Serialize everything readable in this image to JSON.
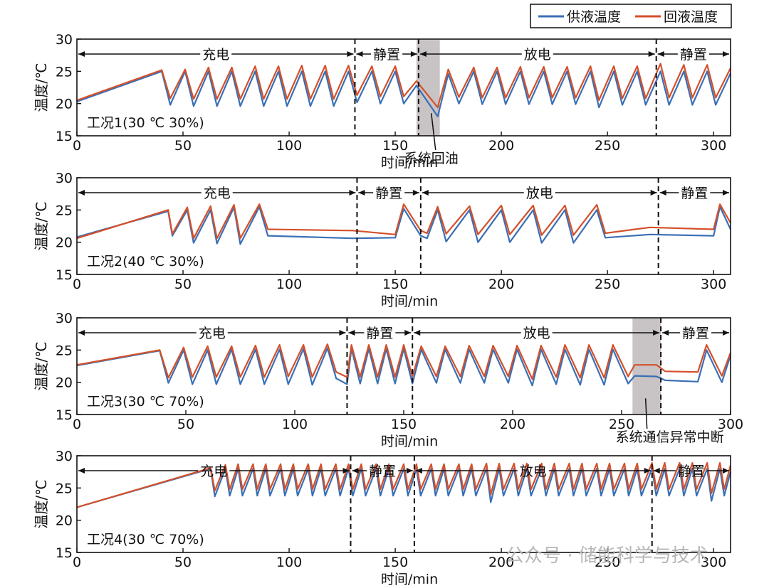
{
  "legend": {
    "supply": {
      "label": "供液温度",
      "color": "#3a6fb5"
    },
    "return": {
      "label": "回液温度",
      "color": "#d4502a"
    }
  },
  "watermark": "公众号 · 储能科学与技术",
  "chart_data": [
    {
      "type": "line",
      "condition_label": "工况1(30 ℃ 30%)",
      "xlabel": "时间/min",
      "ylabel": "温度/℃",
      "xlim": [
        0,
        308
      ],
      "ylim": [
        15,
        30
      ],
      "xticks": [
        0,
        50,
        100,
        150,
        200,
        250,
        300
      ],
      "yticks": [
        15,
        20,
        25,
        30
      ],
      "phases": [
        {
          "label": "充电",
          "start": 0,
          "end": 131
        },
        {
          "label": "静置",
          "start": 131,
          "end": 161
        },
        {
          "label": "放电",
          "start": 161,
          "end": 273
        },
        {
          "label": "静置",
          "start": 273,
          "end": 308
        }
      ],
      "shade": [
        160,
        171
      ],
      "annotation": {
        "text": "系统回油",
        "x": 167,
        "y": 18.5
      },
      "charge_ramp": {
        "start": 0,
        "end": 40,
        "supply": [
          20.3,
          25.0
        ],
        "return": [
          20.5,
          25.2
        ]
      },
      "cycle": {
        "start": 40,
        "period": 11.1,
        "peak": 25.0,
        "trough": 19.6,
        "return_offset": 1.0
      },
      "flat": [
        [
          160,
          171,
          18.1,
          19.4
        ]
      ],
      "series": [
        {
          "name": "供液温度",
          "x": [
            0,
            40,
            44,
            51,
            55,
            62,
            66,
            73,
            77,
            84,
            88,
            95,
            99,
            106,
            110,
            117,
            121,
            128,
            132,
            139,
            143,
            150,
            154,
            160,
            170,
            175,
            180,
            187,
            191,
            198,
            202,
            209,
            213,
            220,
            224,
            231,
            235,
            242,
            246,
            253,
            257,
            264,
            268,
            275,
            279,
            286,
            290,
            297,
            301,
            308
          ],
          "y": [
            20.3,
            25.0,
            19.8,
            25.0,
            19.6,
            25.0,
            19.6,
            25.0,
            19.6,
            25.0,
            19.6,
            25.0,
            19.6,
            25.0,
            19.6,
            25.0,
            19.6,
            25.0,
            20.2,
            25.0,
            20.0,
            25.0,
            20.0,
            22.8,
            18.0,
            24.6,
            20.0,
            25.0,
            19.9,
            25.0,
            19.9,
            25.0,
            19.9,
            25.0,
            19.9,
            25.0,
            19.9,
            25.0,
            19.4,
            25.0,
            19.8,
            25.0,
            19.8,
            25.0,
            19.8,
            25.0,
            19.8,
            25.0,
            19.8,
            24.7
          ]
        },
        {
          "name": "回液温度",
          "x": [
            0,
            40,
            44,
            51,
            55,
            62,
            66,
            73,
            77,
            84,
            88,
            95,
            99,
            106,
            110,
            117,
            121,
            128,
            132,
            139,
            143,
            150,
            154,
            160,
            170,
            175,
            180,
            187,
            191,
            198,
            202,
            209,
            213,
            220,
            224,
            231,
            235,
            242,
            246,
            253,
            257,
            264,
            268,
            275,
            279,
            286,
            290,
            297,
            301,
            308
          ],
          "y": [
            20.5,
            25.2,
            20.8,
            25.3,
            20.7,
            25.6,
            20.7,
            25.6,
            20.7,
            25.8,
            20.7,
            25.8,
            20.7,
            25.9,
            20.7,
            25.9,
            20.7,
            25.9,
            21.3,
            25.8,
            21.1,
            25.8,
            21.1,
            23.5,
            19.4,
            25.3,
            21.0,
            25.6,
            20.9,
            25.6,
            20.9,
            25.7,
            20.9,
            25.7,
            20.9,
            25.7,
            20.9,
            25.8,
            20.5,
            25.8,
            20.8,
            25.8,
            20.8,
            26.2,
            20.9,
            26.0,
            20.9,
            26.0,
            20.9,
            25.5
          ]
        }
      ]
    },
    {
      "type": "line",
      "condition_label": "工况2(40 ℃ 30%)",
      "xlabel": "时间/min",
      "ylabel": "温度/℃",
      "xlim": [
        0,
        308
      ],
      "ylim": [
        15,
        30
      ],
      "xticks": [
        0,
        50,
        100,
        150,
        200,
        250,
        300
      ],
      "yticks": [
        15,
        20,
        25,
        30
      ],
      "phases": [
        {
          "label": "充电",
          "start": 0,
          "end": 132
        },
        {
          "label": "静置",
          "start": 132,
          "end": 162
        },
        {
          "label": "放电",
          "start": 162,
          "end": 274
        },
        {
          "label": "静置",
          "start": 274,
          "end": 308
        }
      ],
      "series": [
        {
          "name": "供液温度",
          "x": [
            0,
            43,
            45,
            52,
            55,
            63,
            66,
            74,
            77,
            86,
            90,
            130,
            150,
            154,
            162,
            165,
            170,
            174,
            185,
            189,
            200,
            204,
            215,
            219,
            230,
            234,
            245,
            249,
            270,
            300,
            303,
            308
          ],
          "y": [
            20.8,
            24.8,
            21.0,
            25.0,
            19.9,
            25.0,
            19.8,
            25.4,
            19.7,
            25.5,
            21.0,
            20.6,
            20.7,
            25.2,
            21.0,
            20.6,
            25.0,
            20.1,
            25.0,
            20.0,
            25.0,
            20.0,
            25.0,
            19.9,
            25.0,
            19.9,
            25.0,
            20.7,
            21.2,
            21.0,
            25.5,
            22.0
          ]
        },
        {
          "name": "回液温度",
          "x": [
            0,
            43,
            45,
            52,
            55,
            63,
            66,
            74,
            77,
            86,
            90,
            130,
            150,
            154,
            162,
            165,
            170,
            174,
            185,
            189,
            200,
            204,
            215,
            219,
            230,
            234,
            245,
            249,
            270,
            300,
            303,
            308
          ],
          "y": [
            20.6,
            25.0,
            21.3,
            25.4,
            20.6,
            25.6,
            20.6,
            25.8,
            20.6,
            25.9,
            22.0,
            21.8,
            21.2,
            25.9,
            21.8,
            21.4,
            25.5,
            21.3,
            25.6,
            21.2,
            25.7,
            21.2,
            25.7,
            21.1,
            25.7,
            21.1,
            25.8,
            21.4,
            22.3,
            22.0,
            25.9,
            23.0
          ]
        }
      ]
    },
    {
      "type": "line",
      "condition_label": "工况3(30 ℃ 70%)",
      "xlabel": "时间/min",
      "ylabel": "温度/℃",
      "xlim": [
        0,
        300
      ],
      "ylim": [
        15,
        30
      ],
      "xticks": [
        0,
        50,
        100,
        150,
        200,
        250,
        300
      ],
      "yticks": [
        15,
        20,
        25,
        30
      ],
      "phases": [
        {
          "label": "充电",
          "start": 0,
          "end": 124
        },
        {
          "label": "静置",
          "start": 124,
          "end": 154
        },
        {
          "label": "放电",
          "start": 154,
          "end": 268
        },
        {
          "label": "静置",
          "start": 268,
          "end": 300
        }
      ],
      "shade": [
        255,
        268
      ],
      "annotation": {
        "text": "系统通信异常中断",
        "x": 261,
        "y": 17.5
      },
      "series": [
        {
          "name": "供液温度",
          "x": [
            0,
            38,
            42,
            49,
            53,
            60,
            64,
            71,
            75,
            82,
            86,
            93,
            97,
            104,
            108,
            115,
            119,
            124,
            126,
            130,
            134,
            138,
            142,
            146,
            150,
            154,
            158,
            165,
            169,
            176,
            180,
            187,
            191,
            198,
            202,
            209,
            213,
            220,
            224,
            231,
            235,
            242,
            246,
            253,
            256,
            266,
            270,
            285,
            289,
            296,
            300
          ],
          "y": [
            22.6,
            24.9,
            19.9,
            25.0,
            19.7,
            25.0,
            19.7,
            25.1,
            19.7,
            25.1,
            19.7,
            25.1,
            19.7,
            25.2,
            19.6,
            25.3,
            20.6,
            19.7,
            25.2,
            19.8,
            25.2,
            19.8,
            25.2,
            19.8,
            25.2,
            19.8,
            25.1,
            19.9,
            25.1,
            19.9,
            25.1,
            19.9,
            25.1,
            19.9,
            25.1,
            19.5,
            25.1,
            19.7,
            25.1,
            19.6,
            25.1,
            19.6,
            25.1,
            19.8,
            21.0,
            20.9,
            20.3,
            20.1,
            25.0,
            20.0,
            24.2
          ]
        },
        {
          "name": "回液温度",
          "x": [
            0,
            38,
            42,
            49,
            53,
            60,
            64,
            71,
            75,
            82,
            86,
            93,
            97,
            104,
            108,
            115,
            119,
            124,
            126,
            130,
            134,
            138,
            142,
            146,
            150,
            154,
            158,
            165,
            169,
            176,
            180,
            187,
            191,
            198,
            202,
            209,
            213,
            220,
            224,
            231,
            235,
            242,
            246,
            253,
            256,
            266,
            270,
            285,
            289,
            296,
            300
          ],
          "y": [
            22.7,
            25.0,
            20.7,
            25.4,
            20.8,
            25.6,
            20.8,
            25.6,
            20.8,
            25.7,
            20.8,
            25.8,
            20.9,
            25.8,
            20.8,
            25.9,
            21.6,
            20.8,
            25.8,
            20.8,
            25.8,
            20.8,
            25.8,
            20.8,
            25.8,
            20.9,
            25.6,
            20.9,
            25.6,
            20.9,
            25.7,
            20.9,
            25.7,
            20.9,
            25.7,
            20.5,
            25.7,
            20.8,
            25.8,
            20.7,
            25.8,
            20.7,
            25.8,
            20.9,
            22.7,
            22.7,
            21.7,
            21.6,
            25.8,
            21.0,
            24.6
          ]
        }
      ]
    },
    {
      "type": "line",
      "condition_label": "工况4(30 ℃ 70%)",
      "xlabel": "时间/min",
      "ylabel": "温度/℃",
      "xlim": [
        0,
        308
      ],
      "ylim": [
        15,
        30
      ],
      "xticks": [
        0,
        50,
        100,
        150,
        200,
        250,
        300
      ],
      "yticks": [
        15,
        20,
        25,
        30
      ],
      "phases": [
        {
          "label": "充电",
          "start": 0,
          "end": 129
        },
        {
          "label": "静置",
          "start": 129,
          "end": 159
        },
        {
          "label": "放电",
          "start": 159,
          "end": 271
        },
        {
          "label": "静置",
          "start": 271,
          "end": 308
        }
      ],
      "series": [
        {
          "name": "供液温度",
          "x": [
            0,
            63,
            65,
            70,
            72,
            76,
            78,
            83,
            85,
            89,
            91,
            96,
            98,
            102,
            104,
            109,
            111,
            115,
            117,
            122,
            124,
            128,
            130,
            134,
            136,
            141,
            143,
            147,
            149,
            154,
            156,
            160,
            162,
            167,
            169,
            173,
            175,
            180,
            182,
            186,
            188,
            193,
            195,
            199,
            201,
            206,
            208,
            212,
            214,
            219,
            221,
            225,
            227,
            232,
            234,
            238,
            240,
            245,
            247,
            251,
            253,
            258,
            260,
            264,
            266,
            271,
            273,
            277,
            279,
            284,
            286,
            290,
            292,
            297,
            299,
            303,
            305,
            308
          ],
          "y": [
            22.0,
            28.0,
            23.7,
            28.0,
            23.8,
            28.0,
            23.8,
            28.0,
            23.8,
            28.0,
            23.8,
            28.0,
            23.8,
            28.0,
            23.8,
            28.0,
            23.8,
            28.0,
            23.8,
            28.0,
            23.8,
            28.0,
            23.8,
            28.0,
            23.8,
            28.0,
            23.8,
            28.0,
            23.8,
            28.0,
            23.8,
            28.0,
            23.8,
            28.0,
            23.8,
            28.0,
            23.8,
            28.0,
            23.8,
            28.0,
            23.8,
            28.0,
            22.8,
            28.0,
            23.8,
            28.0,
            23.8,
            28.0,
            23.8,
            28.0,
            23.8,
            28.0,
            23.8,
            28.0,
            23.8,
            28.0,
            23.8,
            28.0,
            23.8,
            28.0,
            23.8,
            28.0,
            23.8,
            28.0,
            23.8,
            28.0,
            23.8,
            28.0,
            23.8,
            28.0,
            23.8,
            28.0,
            23.8,
            28.0,
            23.0,
            28.0,
            23.8,
            27.5
          ]
        },
        {
          "name": "回液温度",
          "x": [
            0,
            63,
            65,
            70,
            72,
            76,
            78,
            83,
            85,
            89,
            91,
            96,
            98,
            102,
            104,
            109,
            111,
            115,
            117,
            122,
            124,
            128,
            130,
            134,
            136,
            141,
            143,
            147,
            149,
            154,
            156,
            160,
            162,
            167,
            169,
            173,
            175,
            180,
            182,
            186,
            188,
            193,
            195,
            199,
            201,
            206,
            208,
            212,
            214,
            219,
            221,
            225,
            227,
            232,
            234,
            238,
            240,
            245,
            247,
            251,
            253,
            258,
            260,
            264,
            266,
            271,
            273,
            277,
            279,
            284,
            286,
            290,
            292,
            297,
            299,
            303,
            305,
            308
          ],
          "y": [
            22.0,
            28.1,
            24.6,
            28.6,
            24.8,
            28.7,
            24.8,
            28.7,
            24.8,
            28.7,
            24.8,
            28.7,
            24.8,
            28.7,
            24.8,
            28.7,
            24.8,
            28.7,
            24.8,
            28.7,
            24.8,
            28.7,
            24.8,
            28.7,
            24.8,
            28.7,
            24.8,
            28.7,
            24.8,
            28.7,
            24.8,
            28.7,
            24.8,
            28.7,
            24.8,
            28.7,
            24.8,
            28.7,
            24.8,
            28.7,
            24.8,
            28.8,
            24.0,
            28.8,
            24.8,
            28.8,
            24.8,
            28.8,
            24.8,
            28.8,
            24.8,
            28.8,
            24.8,
            28.8,
            24.8,
            28.8,
            24.8,
            28.8,
            24.8,
            28.8,
            24.8,
            28.8,
            24.8,
            28.8,
            24.8,
            28.9,
            24.8,
            28.9,
            24.8,
            28.9,
            24.8,
            28.9,
            24.8,
            28.9,
            24.2,
            28.9,
            24.8,
            28.5
          ]
        }
      ]
    }
  ]
}
